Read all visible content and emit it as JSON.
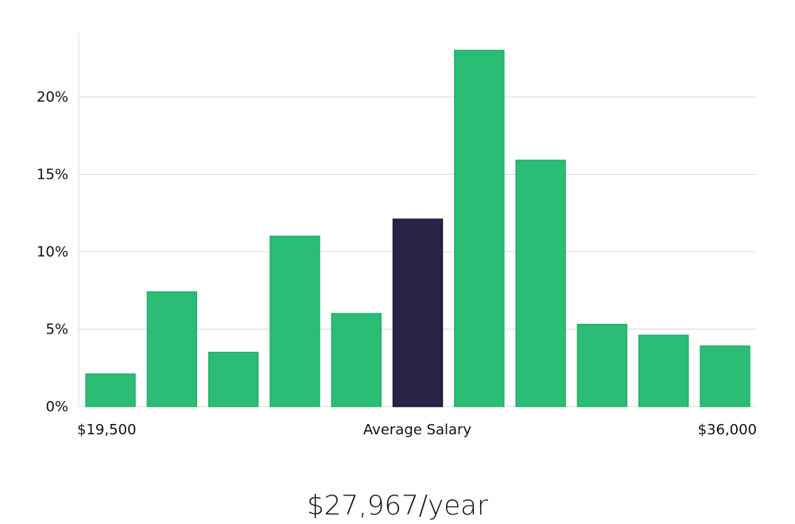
{
  "chart_data": {
    "type": "bar",
    "bins": 11,
    "values": [
      2.1,
      7.4,
      3.5,
      11.0,
      6.0,
      12.1,
      23.0,
      15.9,
      5.3,
      4.6,
      3.9
    ],
    "highlight_index": 5,
    "ylim": [
      0,
      24
    ],
    "yticks": [
      0,
      5,
      10,
      15,
      20
    ],
    "ytick_labels": [
      "0%",
      "5%",
      "10%",
      "15%",
      "20%"
    ],
    "x_labels": {
      "left": "$19,500",
      "center": "Average Salary",
      "right": "$36,000"
    },
    "grid": true,
    "colors": {
      "bar": "#2bbd76",
      "bar_edge": "#22b06c",
      "highlight": "#272447",
      "grid": "#d9d9d9",
      "axis": "#dcdcdc"
    }
  },
  "footer": {
    "salary_text": "$27,967/year"
  }
}
